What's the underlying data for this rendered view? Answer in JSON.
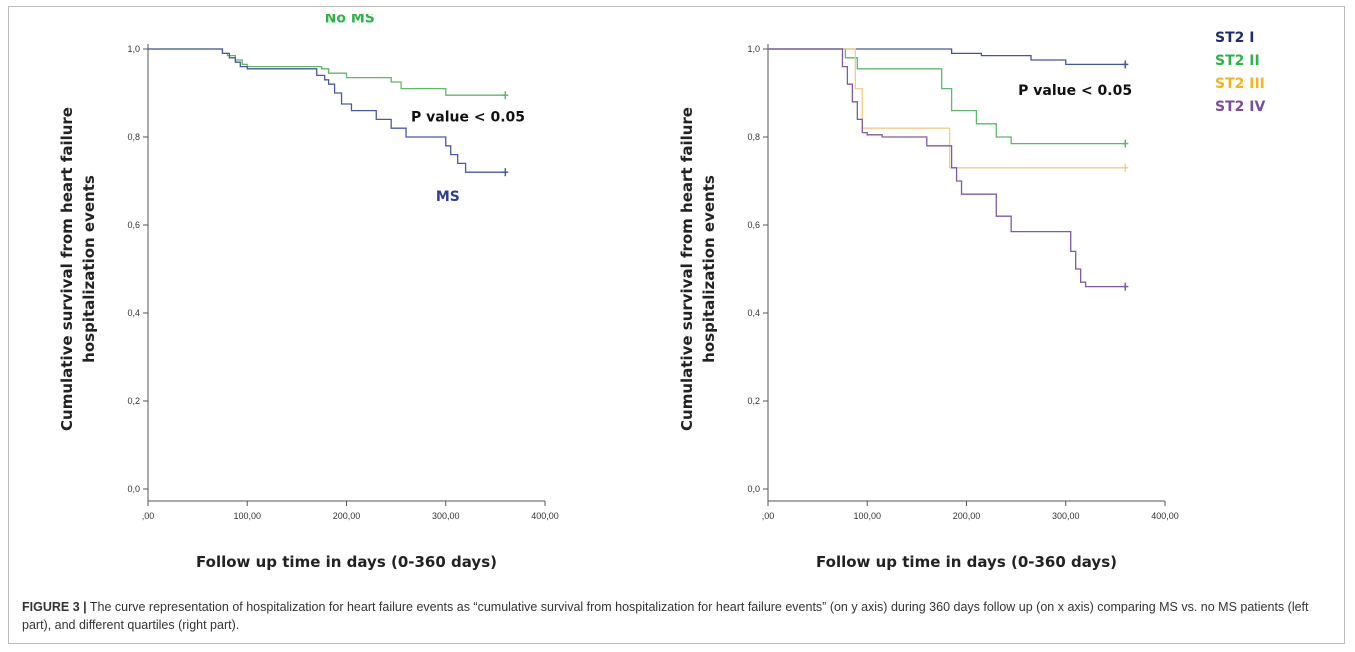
{
  "caption": {
    "label": "FIGURE 3 |",
    "text": "The curve representation of hospitalization for heart failure events as “cumulative survival from hospitalization for heart failure events” (on y axis) during 360 days follow up (on x axis) comparing MS vs. no MS patients (left part), and different quartiles (right part)."
  },
  "chart_data": [
    {
      "type": "line",
      "step": true,
      "ylabel_lines": [
        "Cumulative survival from heart failure",
        "hospitalization events"
      ],
      "xlabel": "Follow up time in days (0-360 days)",
      "xlim": [
        0,
        400
      ],
      "ylim": [
        0,
        1.0
      ],
      "x_ticks": [
        ",00",
        "100,00",
        "200,00",
        "300,00",
        "400,00"
      ],
      "x_tick_values": [
        0,
        100,
        200,
        300,
        400
      ],
      "y_ticks": [
        "0,0",
        "0,2",
        "0,4",
        "0,6",
        "0,8",
        "1,0"
      ],
      "y_tick_values": [
        0,
        0.2,
        0.4,
        0.6,
        0.8,
        1.0
      ],
      "annotations": [
        {
          "text": "No MS",
          "color": "#2db34a",
          "x": 178,
          "y": 1.06
        },
        {
          "text": "P value < 0.05",
          "color": "#111111",
          "x": 265,
          "y": 0.835
        },
        {
          "text": "MS",
          "color": "#2f3f8f",
          "x": 290,
          "y": 0.655
        }
      ],
      "series": [
        {
          "name": "No MS",
          "color": "#5db86a",
          "x": [
            0,
            75,
            80,
            88,
            95,
            100,
            175,
            182,
            200,
            245,
            255,
            300,
            360
          ],
          "y": [
            1.0,
            0.99,
            0.985,
            0.975,
            0.965,
            0.96,
            0.955,
            0.945,
            0.935,
            0.925,
            0.91,
            0.895,
            0.895
          ]
        },
        {
          "name": "MS",
          "color": "#4b5a9e",
          "x": [
            0,
            75,
            82,
            88,
            93,
            100,
            170,
            178,
            182,
            188,
            195,
            205,
            230,
            245,
            260,
            300,
            305,
            312,
            320,
            360
          ],
          "y": [
            1.0,
            0.99,
            0.98,
            0.97,
            0.96,
            0.955,
            0.94,
            0.93,
            0.92,
            0.9,
            0.875,
            0.86,
            0.84,
            0.82,
            0.8,
            0.78,
            0.76,
            0.74,
            0.72,
            0.72
          ]
        }
      ]
    },
    {
      "type": "line",
      "step": true,
      "ylabel_lines": [
        "Cumulative survival from heart failure",
        "hospitalization events"
      ],
      "xlabel": "Follow up time in days (0-360 days)",
      "xlim": [
        0,
        400
      ],
      "ylim": [
        0,
        1.0
      ],
      "x_ticks": [
        ",00",
        "100,00",
        "200,00",
        "300,00",
        "400,00"
      ],
      "x_tick_values": [
        0,
        100,
        200,
        300,
        400
      ],
      "y_ticks": [
        "0,0",
        "0,2",
        "0,4",
        "0,6",
        "0,8",
        "1,0"
      ],
      "y_tick_values": [
        0,
        0.2,
        0.4,
        0.6,
        0.8,
        1.0
      ],
      "annotations": [
        {
          "text": "P value < 0.05",
          "color": "#111111",
          "x": 252,
          "y": 0.895
        }
      ],
      "legend": {
        "placement": "outside-right"
      },
      "series": [
        {
          "name": "ST2 I",
          "color": "#44579a",
          "legend_color": "#1f2d6e",
          "x": [
            0,
            185,
            215,
            265,
            300,
            360
          ],
          "y": [
            1.0,
            0.99,
            0.985,
            0.975,
            0.965,
            0.965
          ]
        },
        {
          "name": "ST2 II",
          "color": "#5db86a",
          "legend_color": "#2db34a",
          "x": [
            0,
            78,
            90,
            175,
            185,
            210,
            230,
            245,
            360
          ],
          "y": [
            1.0,
            0.98,
            0.955,
            0.91,
            0.86,
            0.83,
            0.8,
            0.785,
            0.785
          ]
        },
        {
          "name": "ST2 III",
          "color": "#f2cf86",
          "legend_color": "#f2b51f",
          "x": [
            0,
            88,
            95,
            183,
            360
          ],
          "y": [
            1.0,
            0.91,
            0.82,
            0.73,
            0.73
          ]
        },
        {
          "name": "ST2 IV",
          "color": "#7f5aa2",
          "legend_color": "#7a4b9e",
          "x": [
            0,
            75,
            80,
            85,
            90,
            95,
            100,
            115,
            160,
            185,
            190,
            195,
            230,
            245,
            305,
            310,
            315,
            320,
            360
          ],
          "y": [
            1.0,
            0.96,
            0.92,
            0.88,
            0.84,
            0.81,
            0.805,
            0.8,
            0.78,
            0.73,
            0.7,
            0.67,
            0.62,
            0.585,
            0.54,
            0.5,
            0.47,
            0.46,
            0.46
          ]
        }
      ]
    }
  ]
}
